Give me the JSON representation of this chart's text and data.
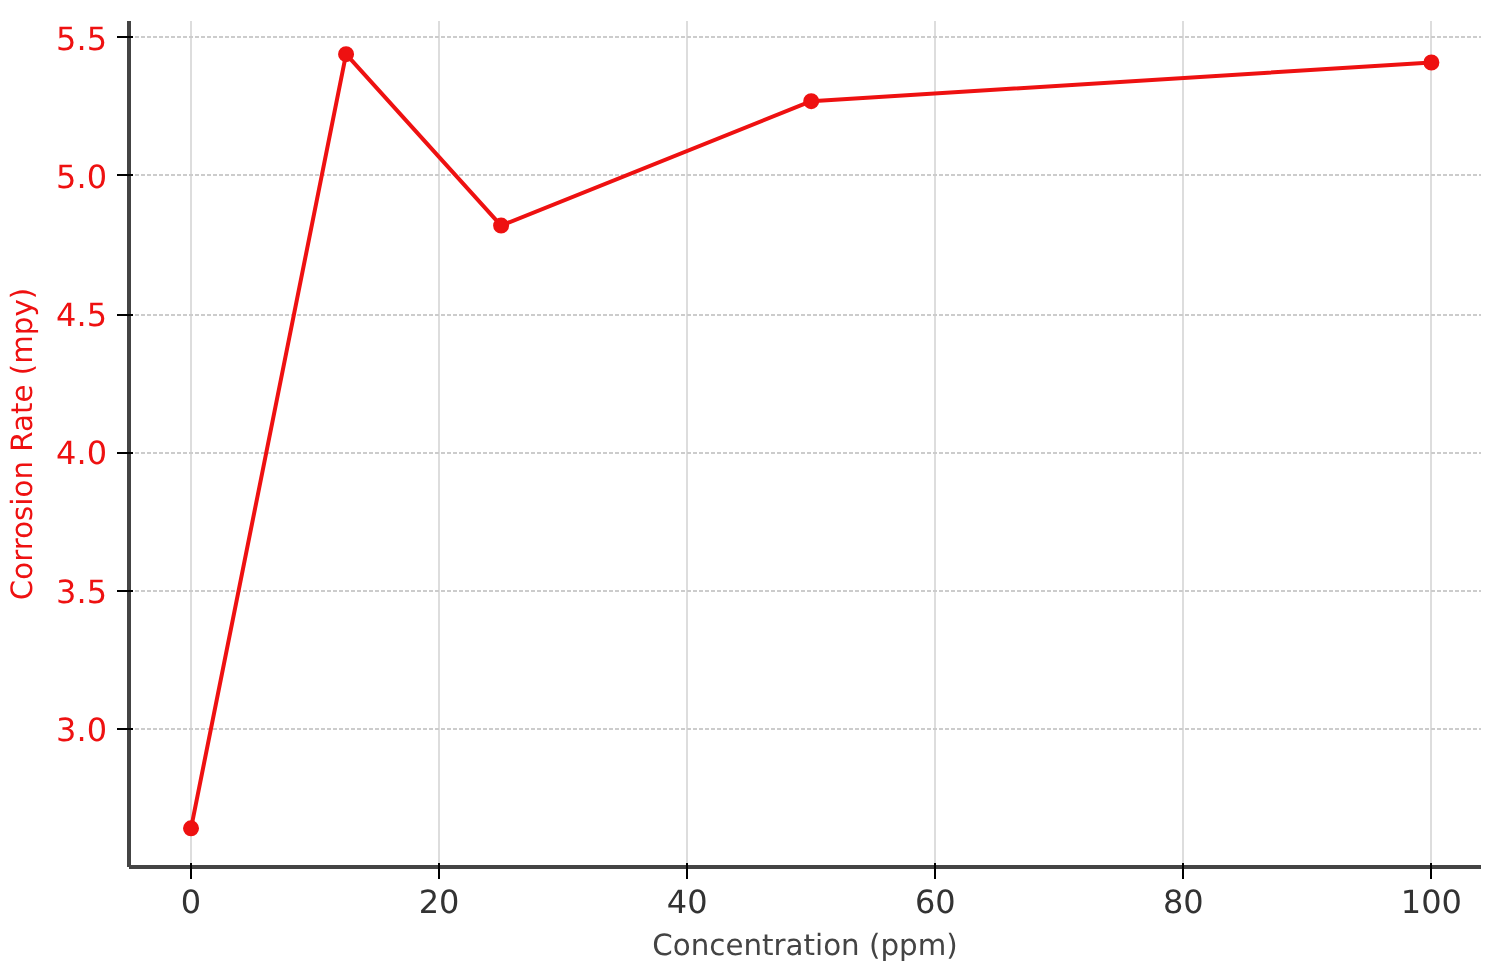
{
  "chart_data": {
    "type": "line",
    "xlabel": "Concentration (ppm)",
    "ylabel": "Corrosion Rate (mpy)",
    "x": [
      0,
      12.5,
      25,
      50,
      100
    ],
    "series": [
      {
        "color": "#ee1111",
        "values": [
          2.64,
          5.44,
          4.82,
          5.27,
          5.41
        ]
      }
    ],
    "xlim": [
      -5,
      104
    ],
    "ylim": [
      2.5,
      5.56
    ],
    "xticks": [
      0,
      20,
      40,
      60,
      80,
      100
    ],
    "yticks": [
      {
        "value": 3,
        "label": "3.0"
      },
      3.5,
      {
        "value": 4,
        "label": "4.0"
      },
      4.5,
      {
        "value": 5,
        "label": "5.0"
      },
      5.5
    ],
    "grid": true,
    "marker": "circle",
    "line_style": "solid"
  }
}
